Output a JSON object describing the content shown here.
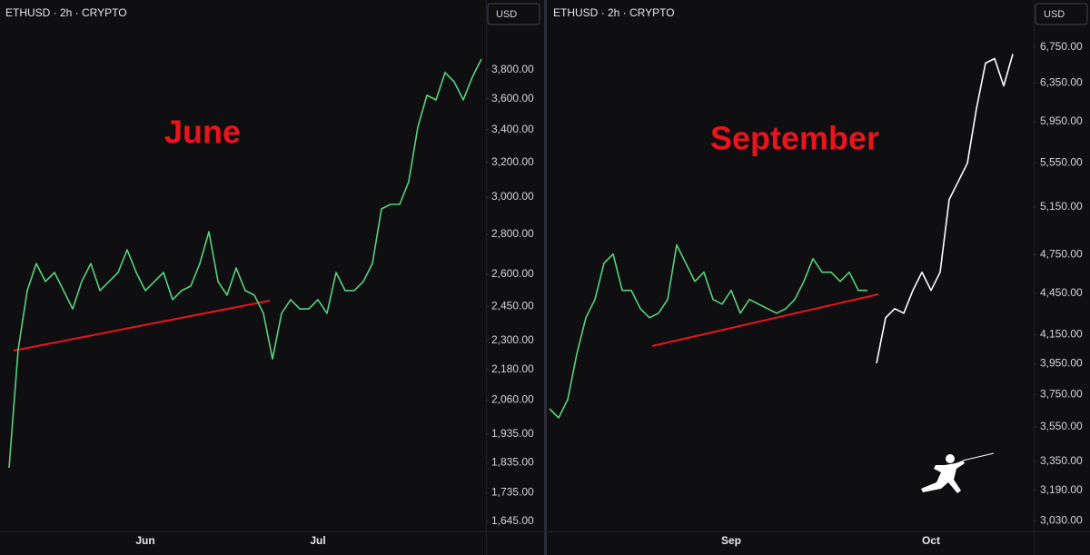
{
  "chart_data": [
    {
      "type": "line",
      "title": "ETHUSD · 2h · CRYPTO",
      "currency": "USD",
      "annotation": "June",
      "annotation_color": "#e8141e",
      "log_scale": true,
      "grid": false,
      "categories": [
        null,
        null,
        null,
        null,
        null,
        null,
        null,
        null,
        null,
        null,
        null,
        null,
        null,
        null,
        null,
        "Jun",
        null,
        null,
        null,
        null,
        null,
        null,
        null,
        null,
        null,
        null,
        null,
        null,
        null,
        null,
        null,
        null,
        null,
        null,
        "Jul",
        null,
        null,
        null,
        null,
        null,
        null,
        null,
        null,
        null,
        null,
        null,
        null,
        null,
        null,
        null,
        null,
        null,
        null
      ],
      "series": [
        {
          "color": "#5ad17f",
          "values": [
            1817,
            2261,
            2523,
            2653,
            2566,
            2609,
            2523,
            2439,
            2566,
            2653,
            2523,
            2566,
            2609,
            2721,
            2609,
            2523,
            2566,
            2609,
            2481,
            2523,
            2544,
            2653,
            2814,
            2566,
            2502,
            2631,
            2523,
            2502,
            2419,
            2223,
            2419,
            2481,
            2439,
            2439,
            2481,
            2419,
            2609,
            2523,
            2523,
            2566,
            2653,
            2936,
            2960,
            2960,
            3088,
            3416,
            3623,
            3592,
            3779,
            3715,
            3592,
            3747,
            3875
          ]
        }
      ],
      "ylim": [
        1615,
        4110
      ],
      "yticks": [
        {
          "value": 1645,
          "label": "1,645.00"
        },
        {
          "value": 1735,
          "label": "1,735.00"
        },
        {
          "value": 1835,
          "label": "1,835.00"
        },
        {
          "value": 1935,
          "label": "1,935.00"
        },
        {
          "value": 2060,
          "label": "2,060.00"
        },
        {
          "value": 2180,
          "label": "2,180.00"
        },
        {
          "value": 2300,
          "label": "2,300.00"
        },
        {
          "value": 2450,
          "label": "2,450.00"
        },
        {
          "value": 2600,
          "label": "2,600.00"
        },
        {
          "value": 2800,
          "label": "2,800.00"
        },
        {
          "value": 3000,
          "label": "3,000.00"
        },
        {
          "value": 3200,
          "label": "3,200.00"
        },
        {
          "value": 3400,
          "label": "3,400.00"
        },
        {
          "value": 3600,
          "label": "3,600.00"
        },
        {
          "value": 3800,
          "label": "3,800.00"
        }
      ]
    },
    {
      "type": "line",
      "title": "ETHUSD · 2h · CRYPTO",
      "currency": "USD",
      "annotation": "September",
      "annotation_color": "#e8141e",
      "log_scale": true,
      "grid": false,
      "categories": [
        null,
        null,
        null,
        null,
        null,
        null,
        null,
        null,
        null,
        null,
        null,
        null,
        null,
        null,
        null,
        null,
        null,
        null,
        null,
        null,
        "Sep",
        null,
        null,
        null,
        null,
        null,
        null,
        null,
        null,
        null,
        null,
        null,
        null,
        null,
        null,
        null,
        null,
        null,
        null,
        null,
        null,
        null,
        "Oct",
        null,
        null,
        null,
        null,
        null,
        null,
        null,
        null,
        null
      ],
      "series": [
        {
          "color": "#5ad17f",
          "values": [
            3661,
            3605,
            3718,
            4015,
            4270,
            4404,
            4683,
            4756,
            4472,
            4472,
            4336,
            4270,
            4303,
            4404,
            4830,
            4683,
            4541,
            4612,
            4404,
            4370,
            4472,
            4303,
            4404,
            4370,
            4336,
            4303,
            4336,
            4404,
            4541,
            4719,
            4612,
            4612,
            4541,
            4612,
            4472,
            4472,
            null,
            null,
            null,
            null,
            null,
            null,
            null,
            null,
            null,
            null,
            null,
            null,
            null,
            null,
            null,
            null
          ]
        },
        {
          "color": "#ffffff",
          "values": [
            null,
            null,
            null,
            null,
            null,
            null,
            null,
            null,
            null,
            null,
            null,
            null,
            null,
            null,
            null,
            null,
            null,
            null,
            null,
            null,
            null,
            null,
            null,
            null,
            null,
            null,
            null,
            null,
            null,
            null,
            null,
            null,
            null,
            null,
            null,
            null,
            3954,
            4270,
            4336,
            4303,
            4472,
            4612,
            4472,
            4612,
            5216,
            5378,
            5546,
            6083,
            6569,
            6620,
            6321,
            6671
          ]
        }
      ],
      "ylim": [
        2975,
        6980
      ],
      "yticks": [
        {
          "value": 3030,
          "label": "3,030.00"
        },
        {
          "value": 3190,
          "label": "3,190.00"
        },
        {
          "value": 3350,
          "label": "3,350.00"
        },
        {
          "value": 3550,
          "label": "3,550.00"
        },
        {
          "value": 3750,
          "label": "3,750.00"
        },
        {
          "value": 3950,
          "label": "3,950.00"
        },
        {
          "value": 4150,
          "label": "4,150.00"
        },
        {
          "value": 4450,
          "label": "4,450.00"
        },
        {
          "value": 4750,
          "label": "4,750.00"
        },
        {
          "value": 5150,
          "label": "5,150.00"
        },
        {
          "value": 5550,
          "label": "5,550.00"
        },
        {
          "value": 5950,
          "label": "5,950.00"
        },
        {
          "value": 6350,
          "label": "6,350.00"
        },
        {
          "value": 6750,
          "label": "6,750.00"
        }
      ]
    }
  ]
}
